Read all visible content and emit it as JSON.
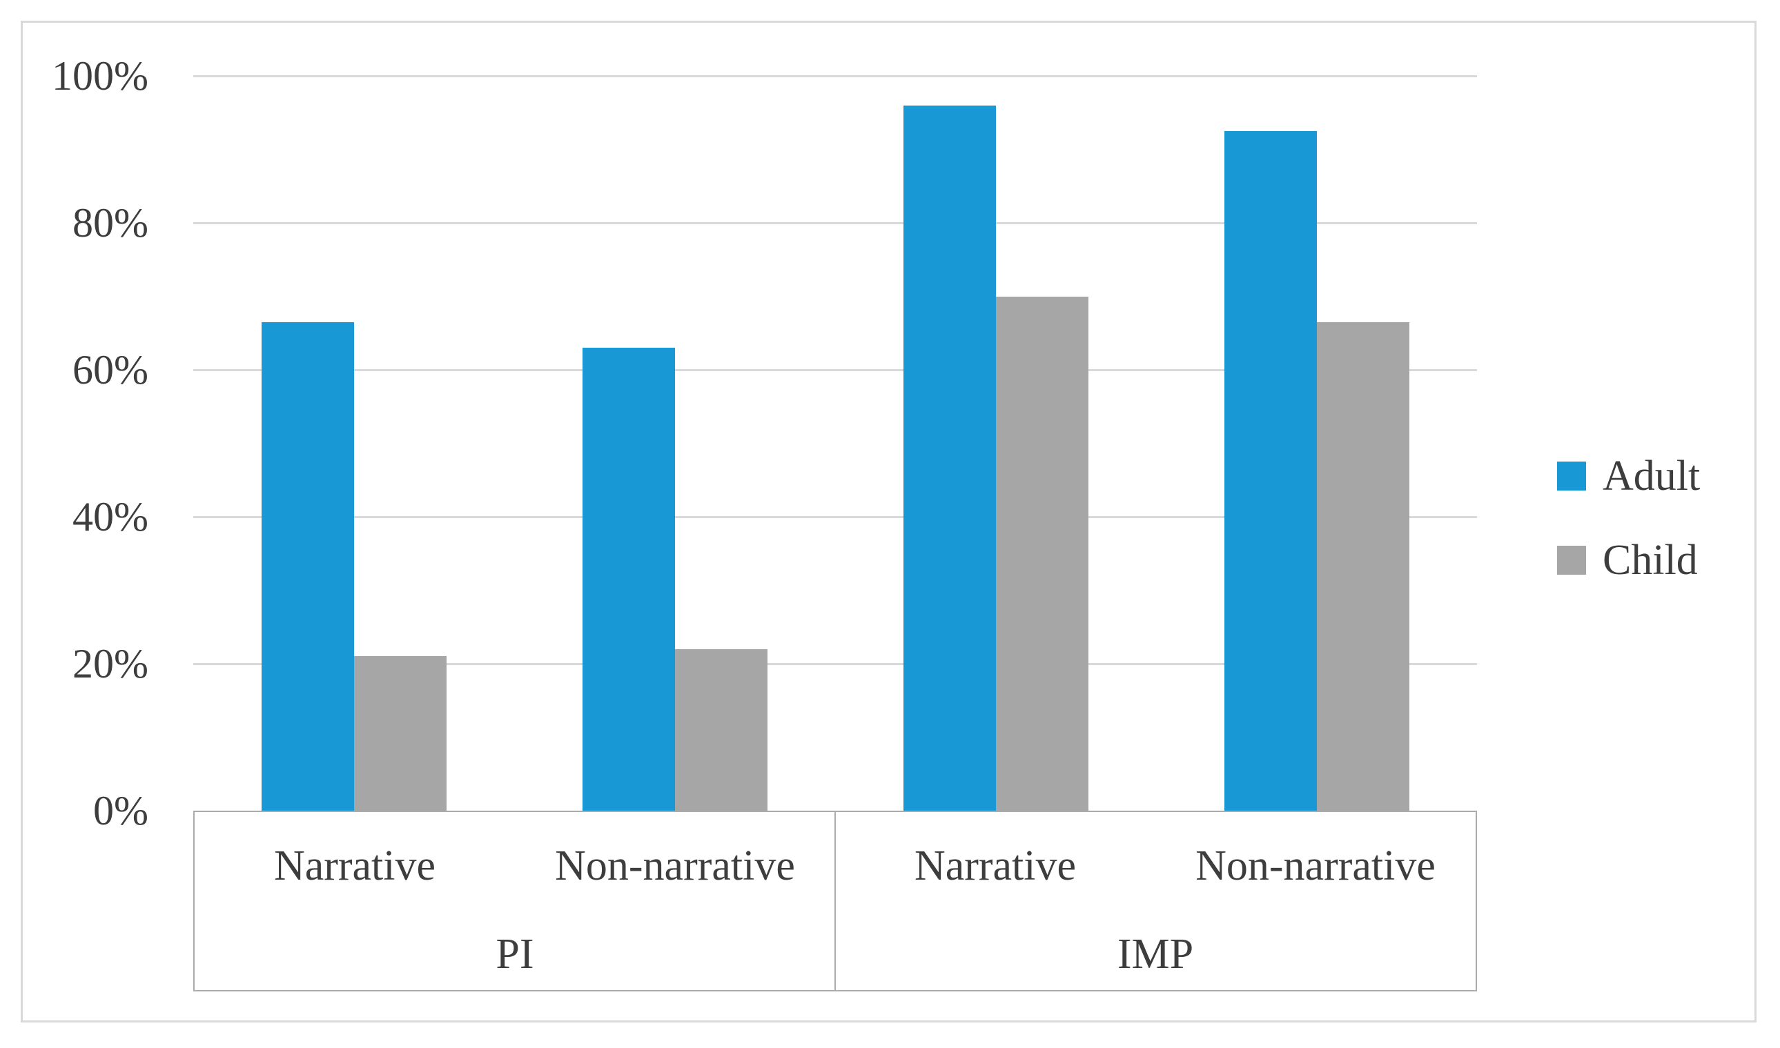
{
  "chart_data": {
    "type": "bar",
    "title": "",
    "xlabel": "",
    "ylabel": "",
    "grid": true,
    "ylim": [
      0,
      100
    ],
    "y_axis": {
      "unit": "%",
      "min": 0,
      "max": 100,
      "ticks": [
        {
          "label": "100%",
          "value": 100
        },
        {
          "label": "80%",
          "value": 80
        },
        {
          "label": "60%",
          "value": 60
        },
        {
          "label": "40%",
          "value": 40
        },
        {
          "label": "20%",
          "value": 20
        },
        {
          "label": "0%",
          "value": 0
        }
      ]
    },
    "x_axis": {
      "groups": [
        {
          "label": "PI",
          "categories": [
            "Narrative",
            "Non-narrative"
          ]
        },
        {
          "label": "IMP",
          "categories": [
            "Narrative",
            "Non-narrative"
          ]
        }
      ]
    },
    "categories": [
      "Narrative",
      "Non-narrative",
      "Narrative",
      "Non-narrative"
    ],
    "series": [
      {
        "name": "Adult",
        "color": "#1899d6",
        "values": [
          66.5,
          63,
          96,
          92.5
        ]
      },
      {
        "name": "Child",
        "color": "#a6a6a6",
        "values": [
          21,
          22,
          70,
          66.5
        ]
      }
    ],
    "legend": {
      "position": "right",
      "entries": [
        "Adult",
        "Child"
      ]
    }
  },
  "colors": {
    "adult_bar": "#1899d6",
    "child_bar": "#a6a6a6",
    "gridline": "#d9d9d9",
    "axis_band_line": "#ababab",
    "chart_border": "#d9d9d9",
    "text": "#3d3d3d",
    "background": "#ffffff"
  }
}
